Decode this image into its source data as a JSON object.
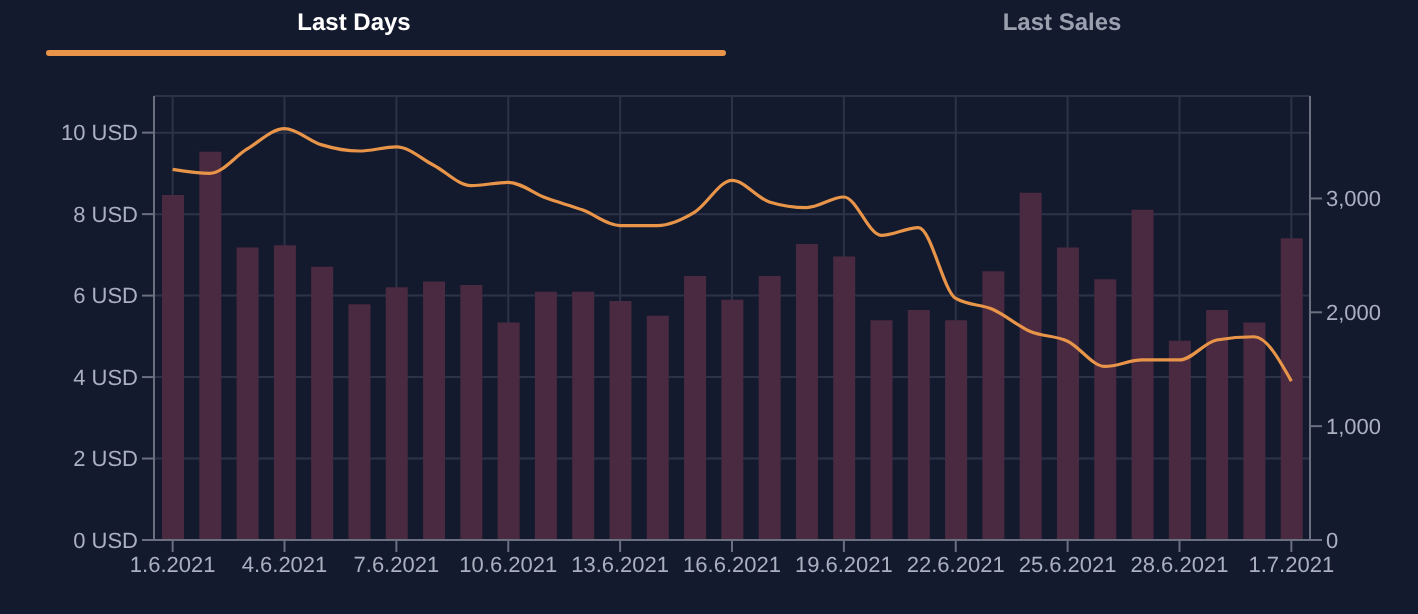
{
  "chart_data": {
    "type": "bar",
    "annotations": [
      "Last Days",
      "Last Sales"
    ],
    "categories": [
      "1.6.2021",
      null,
      null,
      "4.6.2021",
      null,
      null,
      "7.6.2021",
      null,
      null,
      "10.6.2021",
      null,
      null,
      "13.6.2021",
      null,
      null,
      "16.6.2021",
      null,
      null,
      "19.6.2021",
      null,
      null,
      "22.6.2021",
      null,
      null,
      "25.6.2021",
      null,
      null,
      "28.6.2021",
      null,
      null,
      "1.7.2021"
    ],
    "series": [
      {
        "axis": "y2",
        "color": "#4a2a40",
        "values": [
          3030,
          3410,
          2570,
          2590,
          2400,
          2070,
          2220,
          2270,
          2240,
          1910,
          2180,
          2180,
          2100,
          1970,
          2320,
          2110,
          2320,
          2600,
          2490,
          1930,
          2020,
          1930,
          2360,
          3050,
          2570,
          2290,
          2900,
          1750,
          2020,
          1910,
          2650
        ]
      },
      {
        "type": "line",
        "axis": "y",
        "color": "#e8954a",
        "values": [
          9.1,
          9.0,
          9.6,
          10.1,
          9.7,
          9.55,
          9.65,
          9.2,
          8.7,
          8.78,
          8.4,
          8.1,
          7.72,
          7.72,
          8.05,
          8.83,
          8.3,
          8.16,
          8.42,
          7.48,
          7.67,
          5.93,
          5.66,
          5.12,
          4.88,
          4.26,
          4.42,
          4.42,
          4.91,
          4.99,
          3.9
        ]
      }
    ],
    "ylim": [
      0,
      10.9
    ],
    "yticks": [
      {
        "value": 0,
        "label": "0 USD"
      },
      {
        "value": 2,
        "label": "2 USD"
      },
      {
        "value": 4,
        "label": "4 USD"
      },
      {
        "value": 6,
        "label": "6 USD"
      },
      {
        "value": 8,
        "label": "8 USD"
      },
      {
        "value": 10,
        "label": "10 USD"
      }
    ],
    "y2lim": [
      0,
      3900
    ],
    "y2ticks": [
      0,
      {
        "value": 1000,
        "label": "1,000"
      },
      {
        "value": 2000,
        "label": "2,000"
      },
      {
        "value": 3000,
        "label": "3,000"
      }
    ],
    "grid": true
  }
}
